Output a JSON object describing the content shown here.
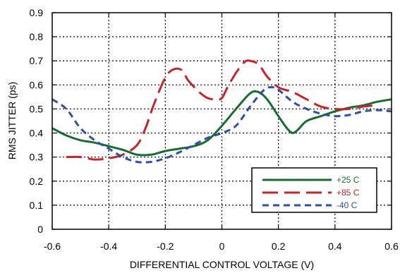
{
  "chart_data": {
    "type": "line",
    "xlabel": "DIFFERENTIAL CONTROL VOLTAGE (V)",
    "ylabel": "RMS JITTER (ps)",
    "xlim": [
      -0.6,
      0.6
    ],
    "ylim": [
      0,
      0.9
    ],
    "x_ticks": [
      "-0.6",
      "-0.4",
      "-0.2",
      "0",
      "0.2",
      "0.4",
      "0.6"
    ],
    "y_ticks": [
      "0",
      "0.1",
      "0.2",
      "0.3",
      "0.4",
      "0.5",
      "0.6",
      "0.7",
      "0.8",
      "0.9"
    ],
    "grid": true,
    "legend_position": "bottom-right",
    "series": [
      {
        "name": "+25 C",
        "color": "#1a6b30",
        "dash": "solid",
        "label_color": "#1a6b30",
        "x": [
          -0.6,
          -0.55,
          -0.5,
          -0.45,
          -0.4,
          -0.35,
          -0.3,
          -0.25,
          -0.2,
          -0.15,
          -0.1,
          -0.05,
          0.0,
          0.05,
          0.1,
          0.13,
          0.16,
          0.2,
          0.23,
          0.25,
          0.27,
          0.3,
          0.35,
          0.4,
          0.45,
          0.5,
          0.55,
          0.6
        ],
        "y": [
          0.42,
          0.39,
          0.37,
          0.36,
          0.345,
          0.33,
          0.31,
          0.31,
          0.325,
          0.335,
          0.345,
          0.37,
          0.43,
          0.5,
          0.565,
          0.57,
          0.54,
          0.47,
          0.42,
          0.4,
          0.415,
          0.45,
          0.47,
          0.49,
          0.505,
          0.515,
          0.53,
          0.54
        ]
      },
      {
        "name": "+85 C",
        "color": "#c0262a",
        "dash": "long-dash",
        "label_color": "#c0262a",
        "x": [
          -0.55,
          -0.5,
          -0.45,
          -0.4,
          -0.35,
          -0.3,
          -0.27,
          -0.24,
          -0.2,
          -0.17,
          -0.14,
          -0.12,
          -0.08,
          -0.05,
          -0.02,
          0.0,
          0.02,
          0.05,
          0.08,
          0.1,
          0.13,
          0.16,
          0.2,
          0.25,
          0.3,
          0.35,
          0.4,
          0.45,
          0.5,
          0.55
        ],
        "y": [
          0.3,
          0.3,
          0.29,
          0.295,
          0.31,
          0.35,
          0.42,
          0.52,
          0.63,
          0.665,
          0.66,
          0.62,
          0.57,
          0.545,
          0.54,
          0.545,
          0.59,
          0.65,
          0.695,
          0.7,
          0.685,
          0.635,
          0.59,
          0.57,
          0.54,
          0.51,
          0.5,
          0.5,
          0.51,
          0.515
        ]
      },
      {
        "name": "-40 C",
        "color": "#2e4fa3",
        "dash": "dash",
        "label_color": "#2e4fa3",
        "x": [
          -0.6,
          -0.55,
          -0.5,
          -0.45,
          -0.4,
          -0.35,
          -0.3,
          -0.25,
          -0.2,
          -0.15,
          -0.1,
          -0.05,
          0.0,
          0.05,
          0.1,
          0.15,
          0.18,
          0.2,
          0.25,
          0.3,
          0.35,
          0.4,
          0.45,
          0.5,
          0.55,
          0.6
        ],
        "y": [
          0.54,
          0.5,
          0.42,
          0.37,
          0.335,
          0.3,
          0.28,
          0.28,
          0.295,
          0.32,
          0.35,
          0.38,
          0.4,
          0.43,
          0.51,
          0.58,
          0.59,
          0.58,
          0.53,
          0.5,
          0.48,
          0.47,
          0.475,
          0.49,
          0.495,
          0.49
        ]
      }
    ]
  }
}
